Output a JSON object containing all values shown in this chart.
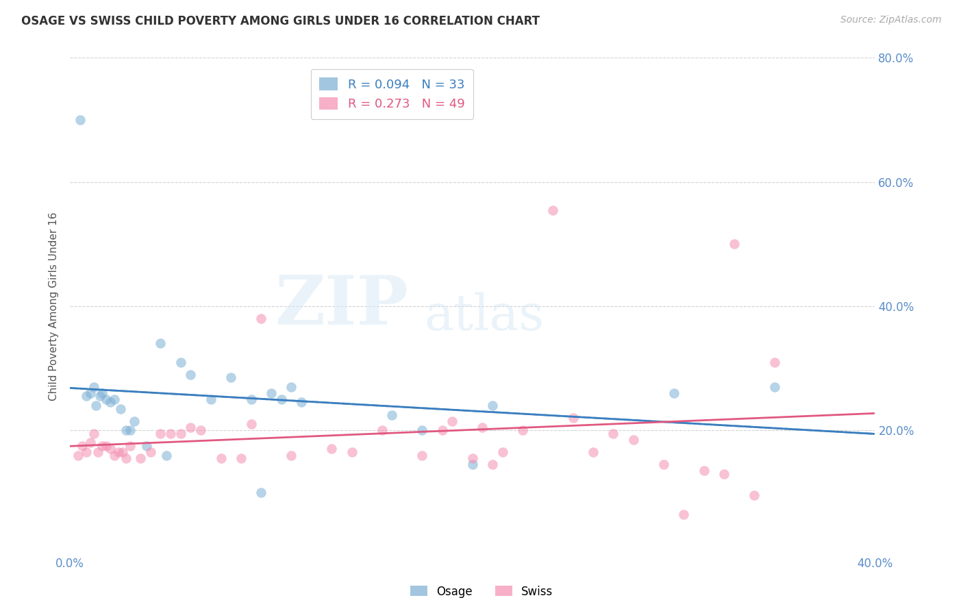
{
  "title": "OSAGE VS SWISS CHILD POVERTY AMONG GIRLS UNDER 16 CORRELATION CHART",
  "source": "Source: ZipAtlas.com",
  "ylabel": "Child Poverty Among Girls Under 16",
  "xlim": [
    0.0,
    0.4
  ],
  "ylim": [
    0.0,
    0.8
  ],
  "xticks": [
    0.0,
    0.1,
    0.2,
    0.3,
    0.4
  ],
  "yticks": [
    0.2,
    0.4,
    0.6,
    0.8
  ],
  "xtick_labels": [
    "0.0%",
    "",
    "",
    "",
    "40.0%"
  ],
  "ytick_labels_right": [
    "20.0%",
    "40.0%",
    "60.0%",
    "80.0%"
  ],
  "osage_color": "#7bafd4",
  "swiss_color": "#f48fb1",
  "osage_R": 0.094,
  "osage_N": 33,
  "swiss_R": 0.273,
  "swiss_N": 49,
  "background_color": "#ffffff",
  "grid_color": "#cccccc",
  "watermark_zip": "ZIP",
  "watermark_atlas": "atlas",
  "osage_x": [
    0.005,
    0.008,
    0.01,
    0.012,
    0.013,
    0.015,
    0.016,
    0.018,
    0.02,
    0.022,
    0.025,
    0.028,
    0.03,
    0.032,
    0.038,
    0.045,
    0.048,
    0.055,
    0.06,
    0.07,
    0.08,
    0.09,
    0.095,
    0.1,
    0.105,
    0.11,
    0.115,
    0.16,
    0.175,
    0.2,
    0.21,
    0.3,
    0.35
  ],
  "osage_y": [
    0.7,
    0.255,
    0.26,
    0.27,
    0.24,
    0.255,
    0.26,
    0.25,
    0.245,
    0.25,
    0.235,
    0.2,
    0.2,
    0.215,
    0.175,
    0.34,
    0.16,
    0.31,
    0.29,
    0.25,
    0.285,
    0.25,
    0.1,
    0.26,
    0.25,
    0.27,
    0.245,
    0.225,
    0.2,
    0.145,
    0.24,
    0.26,
    0.27
  ],
  "swiss_x": [
    0.004,
    0.006,
    0.008,
    0.01,
    0.012,
    0.014,
    0.016,
    0.018,
    0.02,
    0.022,
    0.024,
    0.026,
    0.028,
    0.03,
    0.035,
    0.04,
    0.045,
    0.05,
    0.055,
    0.06,
    0.065,
    0.075,
    0.085,
    0.09,
    0.095,
    0.11,
    0.13,
    0.14,
    0.155,
    0.175,
    0.185,
    0.19,
    0.2,
    0.205,
    0.21,
    0.215,
    0.225,
    0.24,
    0.25,
    0.26,
    0.27,
    0.28,
    0.295,
    0.305,
    0.315,
    0.325,
    0.33,
    0.34,
    0.35
  ],
  "swiss_y": [
    0.16,
    0.175,
    0.165,
    0.18,
    0.195,
    0.165,
    0.175,
    0.175,
    0.17,
    0.16,
    0.165,
    0.165,
    0.155,
    0.175,
    0.155,
    0.165,
    0.195,
    0.195,
    0.195,
    0.205,
    0.2,
    0.155,
    0.155,
    0.21,
    0.38,
    0.16,
    0.17,
    0.165,
    0.2,
    0.16,
    0.2,
    0.215,
    0.155,
    0.205,
    0.145,
    0.165,
    0.2,
    0.555,
    0.22,
    0.165,
    0.195,
    0.185,
    0.145,
    0.065,
    0.135,
    0.13,
    0.5,
    0.095,
    0.31
  ]
}
